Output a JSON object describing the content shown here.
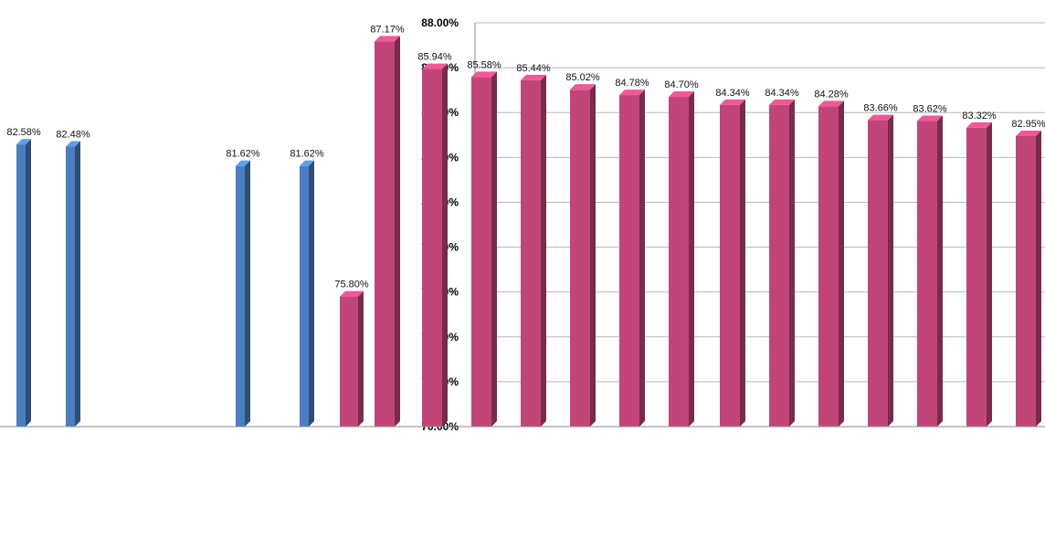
{
  "chart_data": {
    "type": "bar",
    "title": "",
    "xlabel": "",
    "ylabel": "",
    "ylim": [
      70,
      88
    ],
    "y_ticks": [
      "70.00%",
      "72.00%",
      "74.00%",
      "76.00%",
      "78.00%",
      "80.00%",
      "82.00%",
      "84.00%",
      "86.00%",
      "88.00%"
    ],
    "grid": true,
    "legend": "none",
    "value_suffix": "%",
    "series": [
      {
        "color": "#c2457a",
        "categories": [
          "",
          "",
          "",
          "",
          "",
          "",
          "",
          "",
          "",
          "",
          "",
          "",
          "",
          ""
        ],
        "values": [
          87.17,
          85.94,
          85.58,
          85.44,
          85.02,
          84.78,
          84.7,
          84.34,
          84.34,
          84.28,
          83.66,
          83.62,
          83.32,
          82.95
        ],
        "labels": [
          "87.17%",
          "85.94%",
          "85.58%",
          "85.44%",
          "85.02%",
          "84.78%",
          "84.70%",
          "84.34%",
          "84.34%",
          "84.28%",
          "83.66%",
          "83.62%",
          "83.32%",
          "82.95%"
        ]
      },
      {
        "color": "#4a7ebf",
        "categories": [
          "",
          "",
          "",
          ""
        ],
        "values": [
          82.58,
          82.48,
          81.62,
          81.62
        ],
        "labels": [
          "82.58%",
          "82.48%",
          "81.62%",
          "81.62%"
        ]
      },
      {
        "color": "#c2457a",
        "categories": [
          ""
        ],
        "values": [
          75.8
        ],
        "labels": [
          "75.80%"
        ]
      }
    ]
  }
}
